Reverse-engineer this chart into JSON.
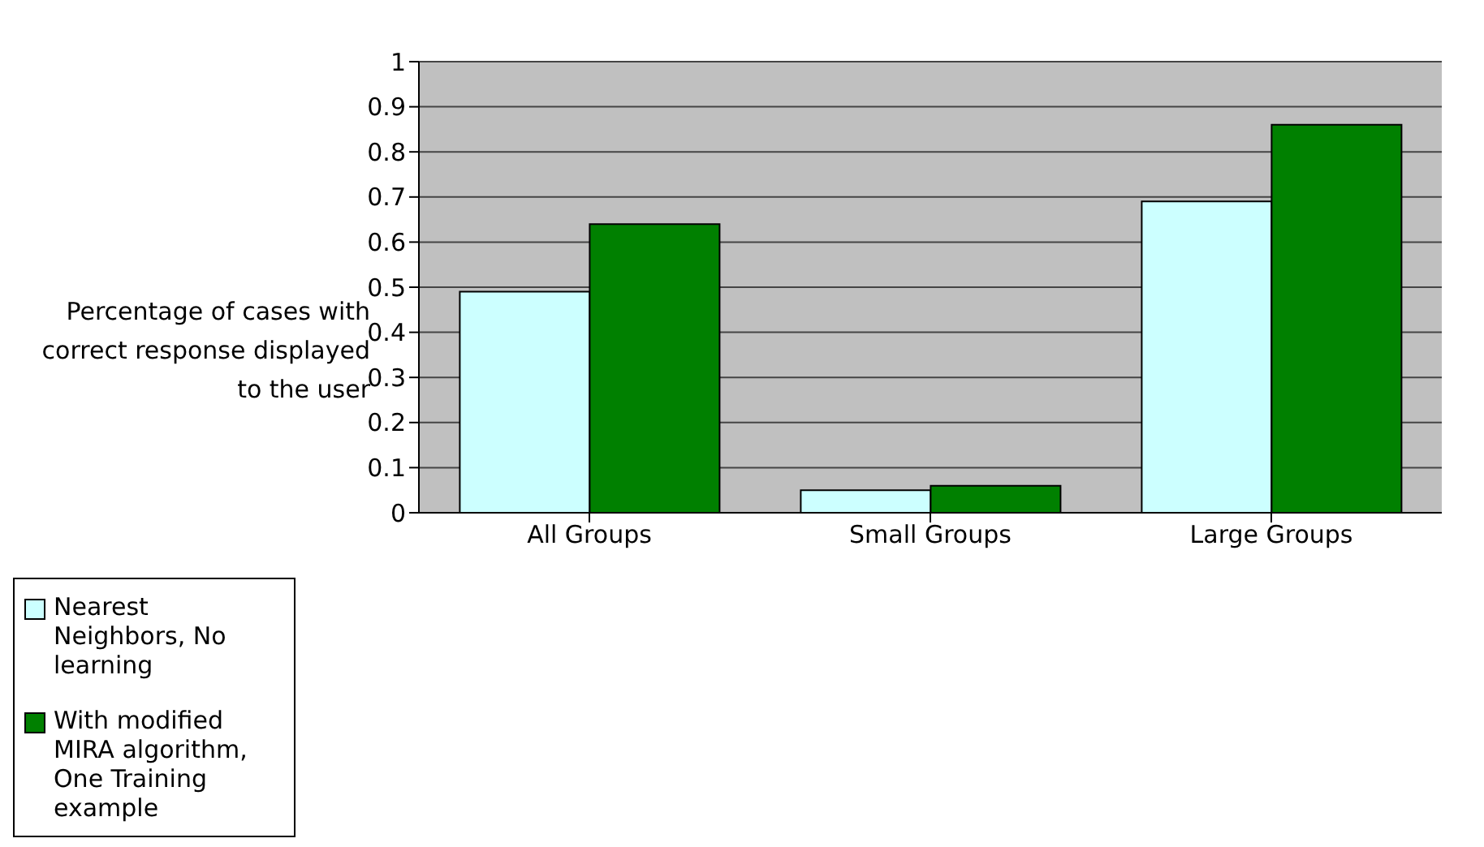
{
  "chart_data": {
    "type": "bar",
    "ylabel": "Percentage of cases with correct response displayed to the user",
    "categories": [
      "All Groups",
      "Small Groups",
      "Large Groups"
    ],
    "series": [
      {
        "name": "Nearest Neighbors, No learning",
        "color": "#ccffff",
        "values": [
          0.49,
          0.05,
          0.69
        ]
      },
      {
        "name": "With modified MIRA algorithm, One Training example",
        "color": "#008000",
        "values": [
          0.64,
          0.06,
          0.86
        ]
      }
    ],
    "ylim": [
      0,
      1
    ],
    "yticks": [
      0,
      0.1,
      0.2,
      0.3,
      0.4,
      0.5,
      0.6,
      0.7,
      0.8,
      0.9,
      1
    ],
    "grid": "y",
    "legend": "left"
  }
}
